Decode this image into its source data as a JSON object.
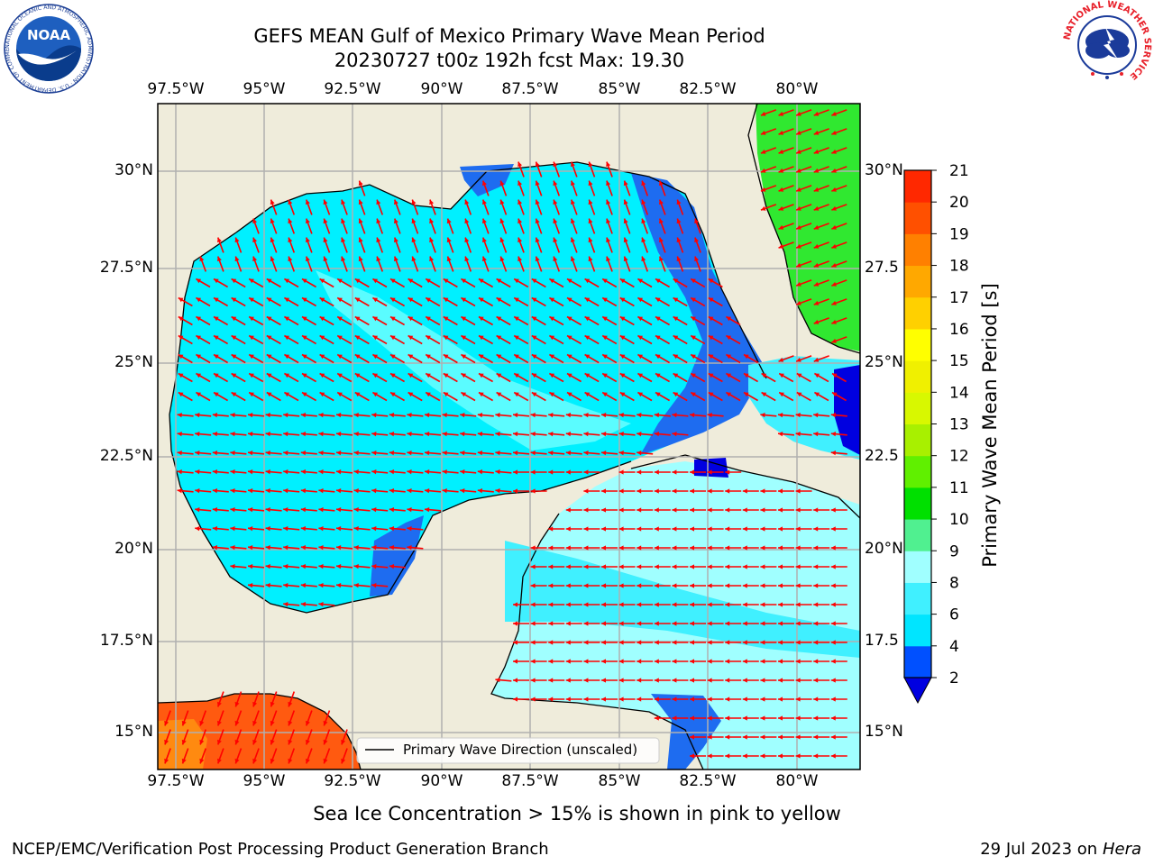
{
  "header": {
    "title_line1": "GEFS MEAN Gulf of Mexico Primary Wave Mean Period",
    "title_line2": "20230727 t00z 192h fcst   Max: 19.30"
  },
  "logos": {
    "noaa_text": "NOAA",
    "noaa_ring": "NATIONAL OCEANIC AND ATMOSPHERIC ADMINISTRATION · U.S. DEPARTMENT OF COMMERCE",
    "nws_ring": "NATIONAL WEATHER SERVICE"
  },
  "map": {
    "lon_ticks": [
      "97.5°W",
      "95°W",
      "92.5°W",
      "90°W",
      "87.5°W",
      "85°W",
      "82.5°W",
      "80°W"
    ],
    "lat_ticks_left": [
      "30°N",
      "27.5°N",
      "25°N",
      "22.5°N",
      "20°N",
      "17.5°N",
      "15°N"
    ],
    "lat_ticks_right": [
      "30°N",
      "27.5",
      "25°N",
      "22.5",
      "20°N",
      "17.5",
      "15°N"
    ],
    "legend_label": "Primary Wave Direction (unscaled)",
    "colors": {
      "land": "#efecdb",
      "arrow": "#ff0000",
      "grid": "#b0b0b0"
    }
  },
  "colorbar": {
    "label": "Primary Wave Mean Period [s]",
    "levels": [
      "2",
      "4",
      "6",
      "8",
      "9",
      "10",
      "11",
      "12",
      "13",
      "14",
      "15",
      "16",
      "17",
      "18",
      "19",
      "20",
      "21"
    ],
    "colors": [
      "#0050ff",
      "#00e5ff",
      "#40f0ff",
      "#a0ffff",
      "#50f090",
      "#00e000",
      "#60f000",
      "#a8f000",
      "#d8f800",
      "#f0f000",
      "#ffff00",
      "#ffd000",
      "#ffa800",
      "#ff8000",
      "#ff5000",
      "#ff2800"
    ],
    "under_color": "#0000e0"
  },
  "footer": {
    "ice_note": "Sea Ice Concentration > 15% is shown in pink to yellow",
    "org": "NCEP/EMC/Verification Post Processing Product Generation Branch",
    "date": "29 Jul 2023 on ",
    "host": "Hera"
  }
}
